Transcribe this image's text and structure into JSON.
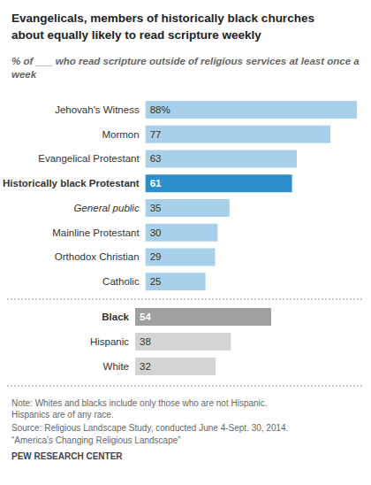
{
  "chart_data": [
    {
      "type": "bar",
      "title": "Evangelicals, members of historically black churches\nabout equally likely to read scripture weekly",
      "subtitle": "% of ___ who read scripture outside of religious services at least once a week",
      "orientation": "horizontal",
      "categories": [
        "Jehovah's Witness",
        "Mormon",
        "Evangelical Protestant",
        "Historically black Protestant",
        "General public",
        "Mainline Protestant",
        "Orthodox Christian",
        "Catholic"
      ],
      "values": [
        88,
        77,
        63,
        61,
        35,
        30,
        29,
        25
      ],
      "value_labels": [
        "88%",
        "77",
        "63",
        "61",
        "35",
        "30",
        "29",
        "25"
      ],
      "colors": [
        "#a9d0ea",
        "#a9d0ea",
        "#a9d0ea",
        "#2b8fcc",
        "#a9d0ea",
        "#a9d0ea",
        "#a9d0ea",
        "#a9d0ea"
      ],
      "xlim": [
        0,
        88
      ],
      "data_labels": true,
      "tick_labels": "y",
      "grid": false
    },
    {
      "type": "bar",
      "orientation": "horizontal",
      "categories": [
        "Black",
        "Hispanic",
        "White"
      ],
      "values": [
        54,
        38,
        32
      ],
      "colors": [
        "#a0a0a0",
        "#d4d4d4",
        "#d4d4d4"
      ],
      "xlim": [
        0,
        88
      ],
      "data_labels": true,
      "tick_labels": "y",
      "grid": false,
      "annotations": [
        "Note: Whites and blacks include only those who are not Hispanic. Hispanics are of any race.",
        "Source: Religious Landscape Study, conducted June 4-Sept. 30, 2014.",
        "“America’s Changing Religious Landscape”",
        "PEW RESEARCH CENTER"
      ]
    }
  ]
}
